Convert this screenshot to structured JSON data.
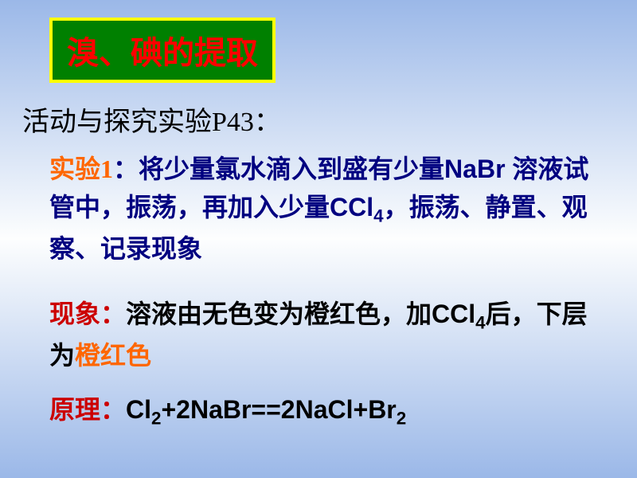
{
  "title": "溴、碘的提取",
  "subtitle": "活动与探究实验P43：",
  "experiment": {
    "label": "实验1",
    "separator": "：",
    "text_before_nabr": "将少量氯水滴入到盛有少量",
    "nabr": "NaBr ",
    "text_mid": "溶液试管中，振荡，再加入少量",
    "ccl4": "CCl",
    "ccl4_sub": "4",
    "text_after": "，振荡、静置、观察、记录现象"
  },
  "phenomenon": {
    "label": "现象：",
    "text_before": "溶液由无色变为橙红色，加",
    "ccl4": "CCl",
    "ccl4_sub": "4",
    "text_mid": "后，下层为",
    "highlight": "橙红色"
  },
  "principle": {
    "label": "原理：",
    "cl2": "Cl",
    "sub2a": "2",
    "plus_nabr": "+2NaBr==2NaCl+Br",
    "sub2b": "2"
  },
  "colors": {
    "title_bg": "#008000",
    "title_border": "#ffff00",
    "title_text": "#ff0000",
    "exp_label": "#ff6600",
    "exp_text": "#000080",
    "phenom_label": "#cc0000",
    "highlight": "#ff6600",
    "principle_label": "#cc0000"
  }
}
